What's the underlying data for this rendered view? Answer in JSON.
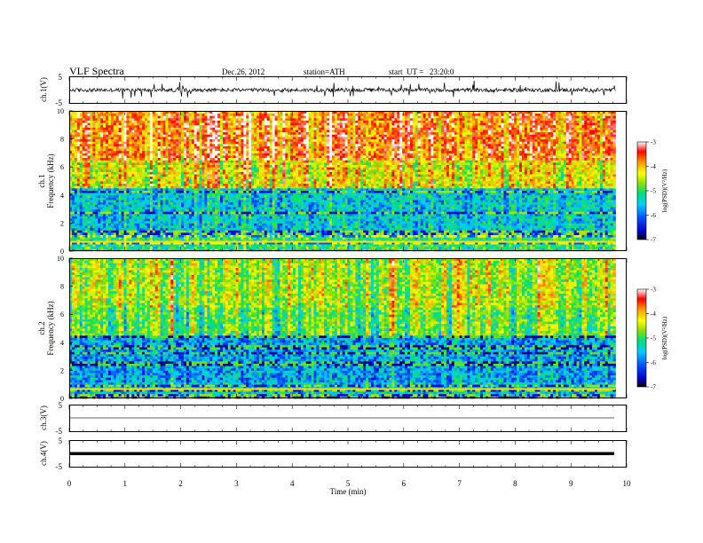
{
  "header": {
    "title": "VLF Spectra",
    "date": "Dec.26, 2012",
    "station": "station=ATH",
    "start": "start  UT =   23:20:0"
  },
  "chart_data": [
    {
      "type": "line",
      "id": "ch1-waveform",
      "ylabel": "ch.1(V)",
      "ylim": [
        -5,
        5
      ],
      "yticks": [
        5,
        -5
      ],
      "x": [
        0,
        9.8
      ],
      "style": "dense noisy waveform"
    },
    {
      "type": "heatmap",
      "id": "ch1-spectrogram",
      "ylabel": "Frequency (kHz)",
      "ylabel2": "ch.1",
      "ylim": [
        0,
        10
      ],
      "yticks": [
        0,
        2,
        4,
        6,
        8,
        10
      ],
      "xlim": [
        0,
        9.8
      ],
      "colorbar": {
        "label": "log(PSD)(V²/Hz)",
        "range": [
          -7,
          -3
        ],
        "ticks": [
          -3,
          -4,
          -5,
          -6,
          -7
        ],
        "colors": [
          "#000000",
          "#0000c8",
          "#0050ff",
          "#00ccff",
          "#00e070",
          "#90e000",
          "#ffff00",
          "#ff9000",
          "#ff0000",
          "#ffffff"
        ]
      },
      "intensity_profile": {
        "freq_bands_khz": [
          [
            0,
            1.2
          ],
          [
            1.2,
            4.5
          ],
          [
            4.5,
            6.5
          ],
          [
            6.5,
            10
          ]
        ],
        "typical_log_psd": [
          -5.2,
          -5.6,
          -4.4,
          -3.8
        ]
      }
    },
    {
      "type": "heatmap",
      "id": "ch2-spectrogram",
      "ylabel": "Frequency (kHz)",
      "ylabel2": "ch.2",
      "ylim": [
        0,
        10
      ],
      "yticks": [
        0,
        2,
        4,
        6,
        8,
        10
      ],
      "xlim": [
        0,
        9.8
      ],
      "colorbar": {
        "label": "log(PSD)(V²/Hz)",
        "range": [
          -7,
          -3
        ],
        "ticks": [
          -3,
          -4,
          -5,
          -6,
          -7
        ]
      },
      "intensity_profile": {
        "freq_bands_khz": [
          [
            0,
            1.2
          ],
          [
            1.2,
            4.5
          ],
          [
            4.5,
            6.5
          ],
          [
            6.5,
            10
          ]
        ],
        "typical_log_psd": [
          -5.6,
          -5.8,
          -5.0,
          -4.7
        ]
      }
    },
    {
      "type": "line",
      "id": "ch3-waveform",
      "ylabel": "ch.3(V)",
      "ylim": [
        -5,
        5
      ],
      "yticks": [
        5,
        -5
      ],
      "y": [
        0,
        0
      ],
      "x": [
        0,
        9.8
      ]
    },
    {
      "type": "line",
      "id": "ch4-waveform",
      "ylabel": "ch.4(V)",
      "ylim": [
        -5,
        5
      ],
      "yticks": [
        5,
        -5
      ],
      "y": [
        0,
        0
      ],
      "x": [
        0,
        9.8
      ]
    }
  ],
  "xaxis": {
    "label": "Time  (min)",
    "range": [
      0,
      10
    ],
    "ticks": [
      "0",
      "1",
      "2",
      "3",
      "4",
      "5",
      "6",
      "7",
      "8",
      "9",
      "10"
    ]
  }
}
